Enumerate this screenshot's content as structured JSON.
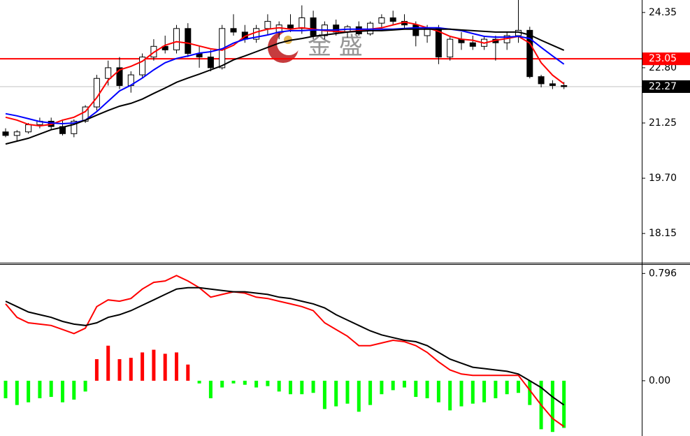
{
  "chart_data": [
    {
      "type": "candlestick",
      "ylim": [
        17.31,
        24.7
      ],
      "yticks": [
        24.35,
        {
          "value": 22.8,
          "label": "22.80"
        },
        21.25,
        {
          "value": 19.7,
          "label": "19.70"
        },
        18.15
      ],
      "watermark": "金 盛",
      "candles": {
        "up_color": "#ffffff",
        "down_color": "#000000",
        "values": [
          [
            21.0,
            21.1,
            20.85,
            20.9
          ],
          [
            20.9,
            21.05,
            20.75,
            21.0
          ],
          [
            21.0,
            21.25,
            20.95,
            21.2
          ],
          [
            21.2,
            21.4,
            21.1,
            21.3
          ],
          [
            21.3,
            21.4,
            21.05,
            21.15
          ],
          [
            21.15,
            21.35,
            20.9,
            20.95
          ],
          [
            20.95,
            21.35,
            20.85,
            21.3
          ],
          [
            21.3,
            21.75,
            21.25,
            21.7
          ],
          [
            21.7,
            22.6,
            21.6,
            22.5
          ],
          [
            22.5,
            23.0,
            22.3,
            22.8
          ],
          [
            22.8,
            23.1,
            22.2,
            22.3
          ],
          [
            22.3,
            22.7,
            22.1,
            22.6
          ],
          [
            22.6,
            23.2,
            22.5,
            23.1
          ],
          [
            23.1,
            23.6,
            23.0,
            23.4
          ],
          [
            23.4,
            23.7,
            23.2,
            23.3
          ],
          [
            23.3,
            24.0,
            23.2,
            23.9
          ],
          [
            23.9,
            24.05,
            23.1,
            23.2
          ],
          [
            23.2,
            23.4,
            22.8,
            23.1
          ],
          [
            23.1,
            23.3,
            22.7,
            22.8
          ],
          [
            22.8,
            24.0,
            22.75,
            23.9
          ],
          [
            23.9,
            24.3,
            23.7,
            23.8
          ],
          [
            23.8,
            24.0,
            23.5,
            23.6
          ],
          [
            23.6,
            24.0,
            23.5,
            23.9
          ],
          [
            23.9,
            24.3,
            23.7,
            24.1
          ],
          [
            23.8,
            24.1,
            23.6,
            24.0
          ],
          [
            24.0,
            24.3,
            23.8,
            23.9
          ],
          [
            23.9,
            24.55,
            23.75,
            24.2
          ],
          [
            24.2,
            24.4,
            23.6,
            23.7
          ],
          [
            23.7,
            24.1,
            23.6,
            24.0
          ],
          [
            24.0,
            24.15,
            23.7,
            23.8
          ],
          [
            23.8,
            24.0,
            23.65,
            23.95
          ],
          [
            23.95,
            24.1,
            23.7,
            23.75
          ],
          [
            23.75,
            24.1,
            23.7,
            24.05
          ],
          [
            24.05,
            24.3,
            23.9,
            24.2
          ],
          [
            24.2,
            24.4,
            24.0,
            24.1
          ],
          [
            24.1,
            24.3,
            23.9,
            24.0
          ],
          [
            24.0,
            24.1,
            23.4,
            23.7
          ],
          [
            23.7,
            24.0,
            23.5,
            23.9
          ],
          [
            23.9,
            24.0,
            22.9,
            23.1
          ],
          [
            23.1,
            23.7,
            23.0,
            23.6
          ],
          [
            23.6,
            23.8,
            23.3,
            23.5
          ],
          [
            23.5,
            23.7,
            23.3,
            23.4
          ],
          [
            23.4,
            23.7,
            23.3,
            23.6
          ],
          [
            23.6,
            23.7,
            23.0,
            23.5
          ],
          [
            23.5,
            23.8,
            23.3,
            23.7
          ],
          [
            23.7,
            24.7,
            23.5,
            23.85
          ],
          [
            23.85,
            23.95,
            22.5,
            22.55
          ],
          [
            22.55,
            22.6,
            22.25,
            22.35
          ],
          [
            22.35,
            22.45,
            22.2,
            22.3
          ],
          [
            22.3,
            22.4,
            22.2,
            22.27
          ]
        ]
      },
      "series": [
        {
          "color": "#ff0000",
          "values": [
            21.41,
            21.33,
            21.21,
            21.17,
            21.21,
            21.33,
            21.41,
            21.57,
            21.96,
            22.45,
            22.74,
            22.84,
            22.98,
            23.23,
            23.43,
            23.53,
            23.49,
            23.41,
            23.33,
            23.29,
            23.43,
            23.68,
            23.8,
            23.88,
            23.92,
            23.88,
            23.92,
            23.88,
            23.84,
            23.82,
            23.8,
            23.84,
            23.88,
            23.92,
            24.0,
            24.08,
            24.02,
            23.92,
            23.82,
            23.68,
            23.6,
            23.57,
            23.49,
            23.57,
            23.62,
            23.68,
            23.49,
            22.94,
            22.59,
            22.35
          ]
        },
        {
          "color": "#0000ff",
          "values": [
            21.51,
            21.45,
            21.37,
            21.29,
            21.25,
            21.23,
            21.25,
            21.33,
            21.57,
            21.86,
            22.15,
            22.31,
            22.51,
            22.74,
            22.94,
            23.06,
            23.13,
            23.21,
            23.25,
            23.33,
            23.49,
            23.6,
            23.66,
            23.72,
            23.8,
            23.84,
            23.84,
            23.86,
            23.86,
            23.86,
            23.88,
            23.88,
            23.88,
            23.88,
            23.88,
            23.9,
            23.92,
            23.92,
            23.92,
            23.88,
            23.84,
            23.76,
            23.68,
            23.66,
            23.66,
            23.68,
            23.62,
            23.37,
            23.13,
            22.9
          ]
        },
        {
          "color": "#000000",
          "values": [
            20.66,
            20.74,
            20.82,
            20.94,
            21.06,
            21.13,
            21.21,
            21.33,
            21.47,
            21.6,
            21.72,
            21.8,
            21.92,
            22.08,
            22.23,
            22.39,
            22.51,
            22.62,
            22.74,
            22.86,
            23.02,
            23.13,
            23.25,
            23.37,
            23.49,
            23.57,
            23.62,
            23.68,
            23.72,
            23.76,
            23.8,
            23.82,
            23.84,
            23.84,
            23.86,
            23.88,
            23.88,
            23.88,
            23.88,
            23.88,
            23.86,
            23.84,
            23.82,
            23.8,
            23.8,
            23.8,
            23.72,
            23.57,
            23.43,
            23.29
          ]
        }
      ],
      "levels": [
        {
          "value": 23.05,
          "color": "#ff0000",
          "box": "#ff0000"
        },
        {
          "value": 22.27,
          "color": "#c0c0c0",
          "box": "#000000"
        }
      ]
    },
    {
      "type": "macd",
      "ylim": [
        -0.41,
        0.86
      ],
      "yticks": [
        0.796,
        {
          "value": 0,
          "label": "0.00"
        }
      ],
      "hist": {
        "up_color": "#ff0000",
        "down_color": "#00ff00",
        "values": [
          -0.13,
          -0.18,
          -0.16,
          -0.13,
          -0.12,
          -0.16,
          -0.14,
          -0.08,
          0.16,
          0.26,
          0.16,
          0.17,
          0.21,
          0.23,
          0.2,
          0.21,
          0.12,
          -0.02,
          -0.13,
          -0.05,
          -0.02,
          -0.03,
          -0.05,
          -0.04,
          -0.08,
          -0.1,
          -0.1,
          -0.09,
          -0.21,
          -0.19,
          -0.17,
          -0.23,
          -0.18,
          -0.1,
          -0.07,
          -0.05,
          -0.12,
          -0.13,
          -0.16,
          -0.22,
          -0.19,
          -0.17,
          -0.16,
          -0.13,
          -0.1,
          -0.09,
          -0.18,
          -0.36,
          -0.38,
          -0.35
        ]
      },
      "series": [
        {
          "color": "#ff0000",
          "values": [
            0.57,
            0.47,
            0.43,
            0.42,
            0.41,
            0.38,
            0.35,
            0.39,
            0.55,
            0.6,
            0.59,
            0.61,
            0.68,
            0.73,
            0.74,
            0.78,
            0.74,
            0.69,
            0.62,
            0.64,
            0.66,
            0.65,
            0.62,
            0.61,
            0.59,
            0.57,
            0.55,
            0.52,
            0.43,
            0.38,
            0.33,
            0.26,
            0.26,
            0.28,
            0.3,
            0.29,
            0.26,
            0.21,
            0.14,
            0.08,
            0.05,
            0.04,
            0.04,
            0.04,
            0.04,
            0.04,
            -0.07,
            -0.18,
            -0.28,
            -0.34
          ]
        },
        {
          "color": "#000000",
          "values": [
            0.59,
            0.55,
            0.51,
            0.49,
            0.47,
            0.44,
            0.42,
            0.41,
            0.43,
            0.47,
            0.49,
            0.52,
            0.56,
            0.6,
            0.64,
            0.68,
            0.69,
            0.69,
            0.68,
            0.67,
            0.66,
            0.66,
            0.65,
            0.64,
            0.62,
            0.61,
            0.59,
            0.57,
            0.54,
            0.49,
            0.45,
            0.41,
            0.37,
            0.34,
            0.32,
            0.3,
            0.29,
            0.26,
            0.21,
            0.16,
            0.13,
            0.1,
            0.09,
            0.08,
            0.07,
            0.05,
            0.0,
            -0.05,
            -0.12,
            -0.18
          ]
        }
      ]
    }
  ]
}
